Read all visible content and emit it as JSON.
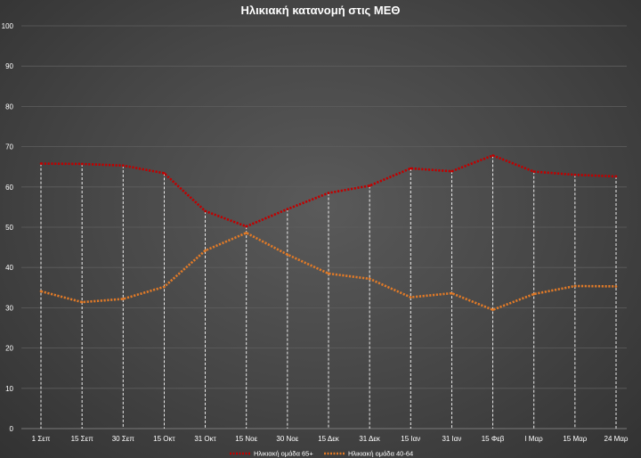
{
  "chart_data": {
    "type": "line",
    "title": "Ηλικιακή κατανομή στις ΜΕΘ",
    "xlabel": "",
    "ylabel": "",
    "ylim": [
      0,
      100
    ],
    "yticks": [
      0,
      10,
      20,
      30,
      40,
      50,
      60,
      70,
      80,
      90,
      100
    ],
    "grid": true,
    "legend_position": "bottom",
    "categories": [
      "1 Σεπ",
      "15 Σεπ",
      "30 Σεπ",
      "15 Οκτ",
      "31 Οκτ",
      "15 Νοε",
      "30 Νοε",
      "15 Δεκ",
      "31 Δεκ",
      "15 Ιαν",
      "31 Ιαν",
      "15 Φεβ",
      "l Μαρ",
      "15 Μαρ",
      "24 Μαρ"
    ],
    "series": [
      {
        "name": "Ηλικιακή ομάδα 65+",
        "color": "#c00000",
        "values": [
          65.8,
          65.7,
          65.3,
          63.4,
          54.0,
          50.2,
          54.5,
          58.5,
          60.3,
          64.6,
          63.9,
          67.8,
          63.8,
          63.0,
          62.6
        ]
      },
      {
        "name": "Ηλικιακή ομάδα 40-64",
        "color": "#e07a28",
        "values": [
          34.1,
          31.4,
          32.2,
          35.2,
          44.2,
          48.6,
          43.2,
          38.5,
          37.2,
          32.6,
          33.6,
          29.5,
          33.4,
          35.4,
          35.3
        ]
      }
    ]
  }
}
